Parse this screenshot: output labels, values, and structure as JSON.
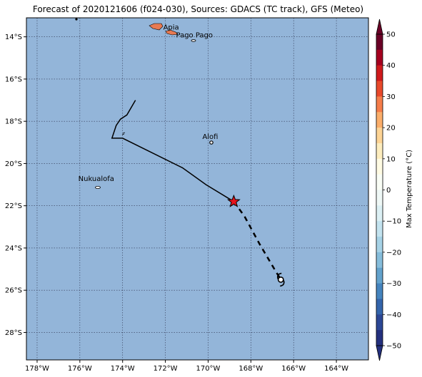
{
  "title": "Forecast of 2020121606 (f024-030), Sources: GDACS (TC track), GFS (Meteo)",
  "map": {
    "lon_range": [
      -178.5,
      -162.5
    ],
    "lat_range": [
      -29.3,
      -13.1
    ],
    "ocean_color": "#93b5d9",
    "grid": true,
    "x_ticks": [
      "178°W",
      "176°W",
      "174°W",
      "172°W",
      "170°W",
      "168°W",
      "166°W",
      "164°W"
    ],
    "y_ticks": [
      "14°S",
      "16°S",
      "18°S",
      "20°S",
      "22°S",
      "24°S",
      "26°S",
      "28°S"
    ],
    "places": [
      {
        "name": "Apia",
        "lon": -171.8,
        "lat": -13.8
      },
      {
        "name": "Pago Pago",
        "lon": -170.7,
        "lat": -14.3
      },
      {
        "name": "Alofi",
        "lon": -169.9,
        "lat": -19.1
      },
      {
        "name": "Nukualofa",
        "lon": -175.2,
        "lat": -21.1
      }
    ],
    "track_past": [
      [
        -173.4,
        -17.0
      ],
      [
        -173.8,
        -17.7
      ],
      [
        -174.1,
        -17.9
      ],
      [
        -174.3,
        -18.2
      ],
      [
        -174.5,
        -18.8
      ],
      [
        -174.0,
        -18.8
      ],
      [
        -171.2,
        -20.2
      ],
      [
        -170.1,
        -21.0
      ],
      [
        -168.8,
        -21.8
      ]
    ],
    "track_forecast": [
      [
        -168.8,
        -21.8
      ],
      [
        -168.3,
        -22.5
      ],
      [
        -167.6,
        -23.8
      ],
      [
        -166.9,
        -25.0
      ],
      [
        -166.6,
        -25.5
      ]
    ],
    "current_position": {
      "lon": -168.8,
      "lat": -21.8
    },
    "forecast_position": {
      "lon": -166.6,
      "lat": -25.5
    }
  },
  "colorbar": {
    "label": "Max Temperature (°C)",
    "ticks": [
      "50",
      "40",
      "30",
      "20",
      "10",
      "0",
      "−10",
      "−20",
      "−30",
      "−40",
      "−50"
    ],
    "range": [
      -50,
      50
    ],
    "step": 5,
    "colors_top_to_bottom": [
      "#6a0026",
      "#a5001f",
      "#cf1a1c",
      "#e8492b",
      "#f57d4a",
      "#fbae6b",
      "#fdd495",
      "#fdedbe",
      "#fffbe3",
      "#f9fdf5",
      "#eff8f6",
      "#dcf0f4",
      "#c3e3ef",
      "#a6d2e6",
      "#86bddb",
      "#63a2cc",
      "#4584be",
      "#3465ab",
      "#2c4795",
      "#24307e"
    ]
  }
}
